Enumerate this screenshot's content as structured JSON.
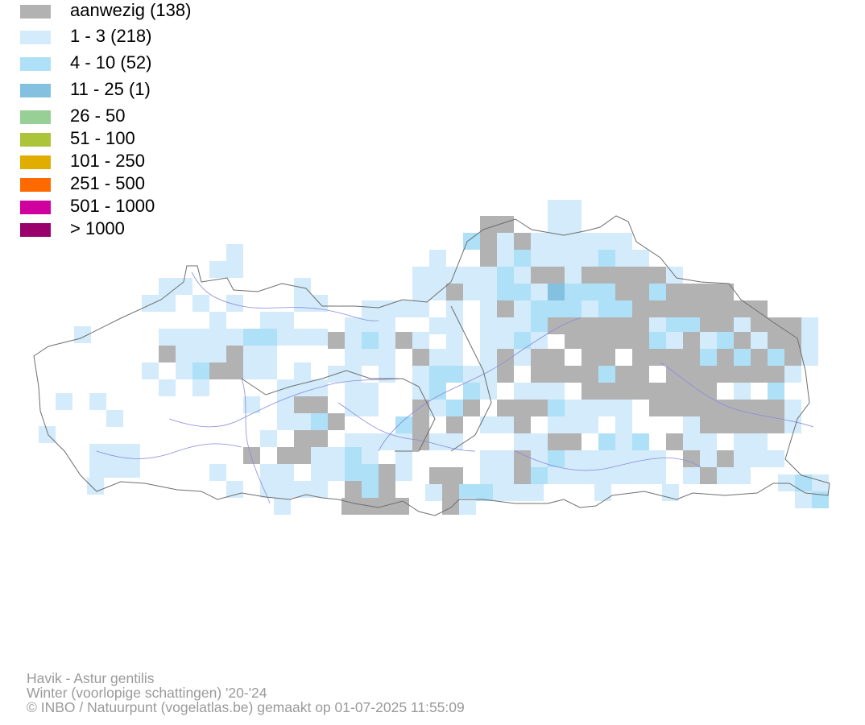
{
  "legend": [
    {
      "label": "aanwezig (138)",
      "color": "#b2b2b2"
    },
    {
      "label": "1 - 3 (218)",
      "color": "#d3ebfa"
    },
    {
      "label": "4 - 10 (52)",
      "color": "#aee0f7"
    },
    {
      "label": "11 - 25 (1)",
      "color": "#84c1e0"
    },
    {
      "label": "26 - 50",
      "color": "#98cf96"
    },
    {
      "label": "51 - 100",
      "color": "#acc43a"
    },
    {
      "label": "101 - 250",
      "color": "#e0ad00"
    },
    {
      "label": "251 - 500",
      "color": "#ff6a00"
    },
    {
      "label": "501 - 1000",
      "color": "#d0009f"
    },
    {
      "label": "> 1000",
      "color": "#99006b"
    }
  ],
  "footer": {
    "species": "Havik - Astur gentilis",
    "period": "Winter (voorlopige schattingen) '20-'24",
    "credit": "© INBO / Natuurpunt (vogelatlas.be) gemaakt op 01-07-2025 11:55:09"
  },
  "colors": {
    "border": "#6e6e6e",
    "river": "#8a8ae0"
  }
}
